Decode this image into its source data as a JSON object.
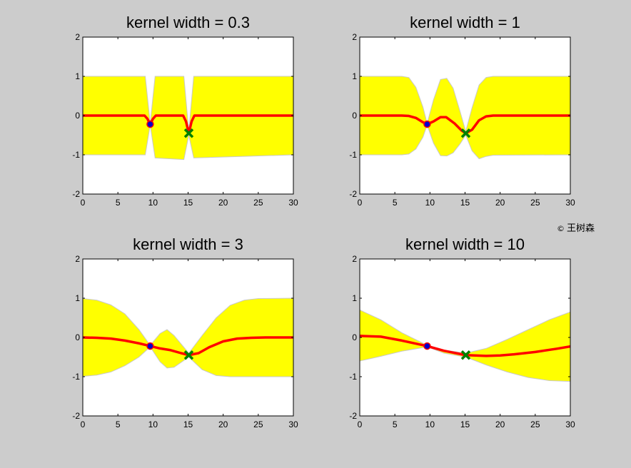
{
  "watermark": "王树森",
  "colors": {
    "figure_background": "#cccccc",
    "axes_background": "#ffffff",
    "confidence_band": "#ffff00",
    "mean_curve": "#ff0000",
    "observed_point_fill": "#0000cc",
    "new_point_marker": "#008000"
  },
  "chart_data": [
    {
      "type": "line",
      "title": "kernel width = 0.3",
      "xlim": [
        0,
        30
      ],
      "ylim": [
        -2,
        2
      ],
      "xticks": [
        0,
        5,
        10,
        15,
        20,
        25,
        30
      ],
      "yticks": [
        -2,
        -1,
        0,
        1,
        2
      ],
      "grid": false,
      "series": [
        {
          "role": "mean",
          "x": [
            0,
            8.8,
            9.2,
            9.6,
            10.0,
            10.4,
            14.3,
            14.7,
            15.1,
            15.5,
            15.9,
            30
          ],
          "y": [
            0,
            0,
            -0.08,
            -0.22,
            -0.08,
            0,
            0,
            -0.15,
            -0.45,
            -0.15,
            0,
            0
          ]
        },
        {
          "role": "band_upper",
          "x": [
            0,
            8.9,
            9.6,
            10.3,
            14.4,
            15.1,
            15.8,
            30
          ],
          "y": [
            1,
            1,
            -0.2,
            1,
            1,
            -0.4,
            1,
            1
          ]
        },
        {
          "role": "band_lower",
          "x": [
            0,
            8.9,
            9.6,
            10.3,
            14.4,
            15.1,
            15.8,
            30
          ],
          "y": [
            -1,
            -1,
            -0.24,
            -1.08,
            -1.12,
            -0.5,
            -1.08,
            -1
          ]
        },
        {
          "role": "observed_point",
          "x": [
            9.6
          ],
          "y": [
            -0.22
          ]
        },
        {
          "role": "new_point",
          "x": [
            15.1
          ],
          "y": [
            -0.45
          ]
        }
      ]
    },
    {
      "type": "line",
      "title": "kernel width = 1",
      "xlim": [
        0,
        30
      ],
      "ylim": [
        -2,
        2
      ],
      "xticks": [
        0,
        5,
        10,
        15,
        20,
        25,
        30
      ],
      "yticks": [
        -2,
        -1,
        0,
        1,
        2
      ],
      "grid": false,
      "series": [
        {
          "role": "mean",
          "x": [
            0,
            6,
            7,
            8,
            9,
            9.6,
            10.5,
            11.5,
            12.3,
            13.5,
            14.5,
            15.1,
            16,
            17,
            18,
            19,
            30
          ],
          "y": [
            0,
            0,
            -0.01,
            -0.06,
            -0.17,
            -0.22,
            -0.15,
            -0.04,
            -0.04,
            -0.2,
            -0.38,
            -0.45,
            -0.36,
            -0.12,
            -0.02,
            0,
            0
          ]
        },
        {
          "role": "band_upper",
          "x": [
            0,
            6,
            7,
            8,
            9,
            9.6,
            10.5,
            11.5,
            12.4,
            13.3,
            14.3,
            15.1,
            16,
            17,
            18,
            19,
            30
          ],
          "y": [
            1,
            1,
            0.97,
            0.72,
            0.22,
            -0.2,
            0.4,
            0.92,
            0.95,
            0.7,
            0.1,
            -0.4,
            0.2,
            0.78,
            0.97,
            1,
            1
          ]
        },
        {
          "role": "band_lower",
          "x": [
            0,
            6,
            7,
            8,
            9,
            9.6,
            10.5,
            11.5,
            12.4,
            13.3,
            14.3,
            15.1,
            16,
            17,
            18,
            19,
            30
          ],
          "y": [
            -1,
            -1,
            -0.98,
            -0.85,
            -0.55,
            -0.24,
            -0.7,
            -1.02,
            -1.03,
            -0.95,
            -0.72,
            -0.5,
            -0.9,
            -1.1,
            -1.04,
            -1.01,
            -1
          ]
        },
        {
          "role": "observed_point",
          "x": [
            9.6
          ],
          "y": [
            -0.22
          ]
        },
        {
          "role": "new_point",
          "x": [
            15.1
          ],
          "y": [
            -0.45
          ]
        }
      ]
    },
    {
      "type": "line",
      "title": "kernel width = 3",
      "xlim": [
        0,
        30
      ],
      "ylim": [
        -2,
        2
      ],
      "xticks": [
        0,
        5,
        10,
        15,
        20,
        25,
        30
      ],
      "yticks": [
        -2,
        -1,
        0,
        1,
        2
      ],
      "grid": false,
      "series": [
        {
          "role": "mean",
          "x": [
            0,
            2,
            4,
            6,
            8,
            9.6,
            11,
            12.4,
            14,
            15.1,
            16.5,
            18,
            20,
            22,
            24,
            26,
            30
          ],
          "y": [
            0,
            -0.01,
            -0.03,
            -0.08,
            -0.15,
            -0.22,
            -0.28,
            -0.32,
            -0.4,
            -0.45,
            -0.4,
            -0.25,
            -0.1,
            -0.03,
            -0.01,
            0,
            0
          ]
        },
        {
          "role": "band_upper",
          "x": [
            0,
            2,
            4,
            6,
            8,
            9.6,
            11,
            12,
            13,
            15.1,
            17,
            19,
            21,
            23,
            25,
            30
          ],
          "y": [
            0.99,
            0.95,
            0.83,
            0.6,
            0.2,
            -0.2,
            0.1,
            0.2,
            0.05,
            -0.4,
            0.05,
            0.5,
            0.82,
            0.95,
            0.99,
            1
          ]
        },
        {
          "role": "band_lower",
          "x": [
            0,
            2,
            4,
            6,
            8,
            9.6,
            11,
            12,
            13,
            15.1,
            17,
            19,
            21,
            23,
            25,
            30
          ],
          "y": [
            -0.99,
            -0.96,
            -0.88,
            -0.72,
            -0.5,
            -0.24,
            -0.62,
            -0.78,
            -0.76,
            -0.5,
            -0.82,
            -0.97,
            -1.0,
            -1.0,
            -1.0,
            -1
          ]
        },
        {
          "role": "observed_point",
          "x": [
            9.6
          ],
          "y": [
            -0.22
          ]
        },
        {
          "role": "new_point",
          "x": [
            15.1
          ],
          "y": [
            -0.45
          ]
        }
      ]
    },
    {
      "type": "line",
      "title": "kernel width = 10",
      "xlim": [
        0,
        30
      ],
      "ylim": [
        -2,
        2
      ],
      "xticks": [
        0,
        5,
        10,
        15,
        20,
        25,
        30
      ],
      "yticks": [
        -2,
        -1,
        0,
        1,
        2
      ],
      "grid": false,
      "series": [
        {
          "role": "mean",
          "x": [
            0,
            3,
            6,
            9.6,
            12,
            15.1,
            18,
            20,
            22,
            25,
            28,
            30
          ],
          "y": [
            0.04,
            0.02,
            -0.08,
            -0.22,
            -0.34,
            -0.45,
            -0.47,
            -0.46,
            -0.43,
            -0.37,
            -0.29,
            -0.23
          ]
        },
        {
          "role": "band_upper",
          "x": [
            0,
            3,
            6,
            9.6,
            12,
            15.1,
            18,
            21,
            24,
            27,
            30
          ],
          "y": [
            0.7,
            0.45,
            0.12,
            -0.2,
            -0.32,
            -0.4,
            -0.28,
            -0.05,
            0.2,
            0.45,
            0.65
          ]
        },
        {
          "role": "band_lower",
          "x": [
            0,
            3,
            6,
            9.6,
            12,
            15.1,
            18,
            21,
            24,
            27,
            30
          ],
          "y": [
            -0.6,
            -0.48,
            -0.35,
            -0.24,
            -0.4,
            -0.5,
            -0.7,
            -0.88,
            -1.02,
            -1.1,
            -1.12
          ]
        },
        {
          "role": "observed_point",
          "x": [
            9.6
          ],
          "y": [
            -0.22
          ]
        },
        {
          "role": "new_point",
          "x": [
            15.1
          ],
          "y": [
            -0.45
          ]
        }
      ]
    }
  ]
}
